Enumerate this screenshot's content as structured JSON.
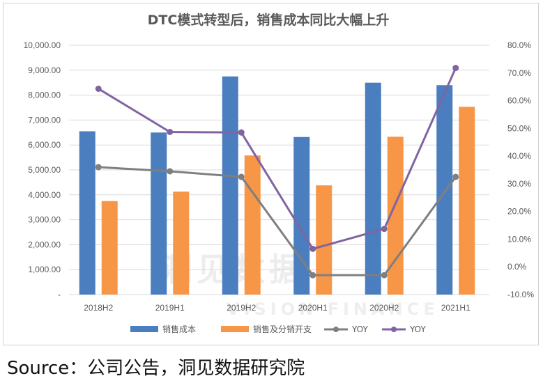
{
  "source_note": "Source：公司公告，洞见数据研究院",
  "watermark": {
    "text": "洞见数据",
    "sub": "VISION FINANCE"
  },
  "colors": {
    "sales_cost": "#4a7ebf",
    "sales_split": "#f79646",
    "yoy_gray": "#7f7f7f",
    "yoy_purple": "#8064a2"
  },
  "chart_data": {
    "type": "bar",
    "title": "DTC模式转型后，销售成本同比大幅上升",
    "categories": [
      "2018H2",
      "2019H1",
      "2019H2",
      "2020H1",
      "2020H2",
      "2021H1"
    ],
    "y_left": {
      "min": 0,
      "max": 10000,
      "step": 1000,
      "tick_labels": [
        "-",
        "1,000.00",
        "2,000.00",
        "3,000.00",
        "4,000.00",
        "5,000.00",
        "6,000.00",
        "7,000.00",
        "8,000.00",
        "9,000.00",
        "10,000.00"
      ]
    },
    "y_right": {
      "min": -0.1,
      "max": 0.8,
      "step": 0.1,
      "tick_labels": [
        "-10.0%",
        "0.0%",
        "10.0%",
        "20.0%",
        "30.0%",
        "40.0%",
        "50.0%",
        "60.0%",
        "70.0%",
        "80.0%"
      ]
    },
    "grid": true,
    "legend_position": "bottom",
    "series": [
      {
        "name": "销售成本",
        "type": "bar",
        "axis": "left",
        "color": "#4a7ebf",
        "values": [
          6550,
          6500,
          8750,
          6320,
          8500,
          8400
        ]
      },
      {
        "name": "销售及分销开支",
        "type": "bar",
        "axis": "left",
        "color": "#f79646",
        "values": [
          3750,
          4130,
          5580,
          4380,
          6330,
          7530
        ]
      },
      {
        "name": "YOY",
        "type": "line",
        "axis": "right",
        "color": "#7f7f7f",
        "values": [
          0.36,
          0.345,
          0.325,
          -0.03,
          -0.03,
          0.325
        ]
      },
      {
        "name": "YOY",
        "type": "line",
        "axis": "right",
        "color": "#8064a2",
        "values": [
          0.643,
          0.487,
          0.485,
          0.065,
          0.137,
          0.718
        ]
      }
    ]
  }
}
